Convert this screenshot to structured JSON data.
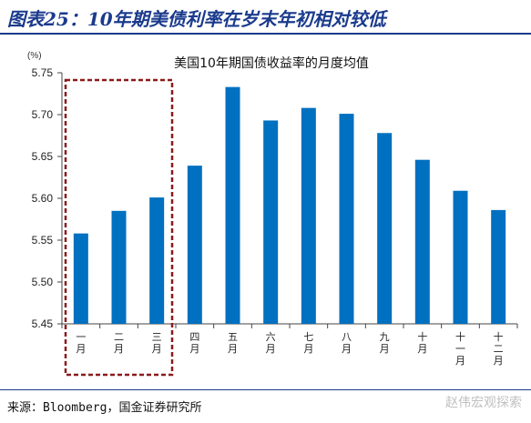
{
  "header": {
    "title": "图表25：10年期美债利率在岁末年初相对较低"
  },
  "footer": {
    "source": "来源：Bloomberg，国金证券研究所",
    "watermark": "赵伟宏观探索"
  },
  "chart_data": {
    "type": "bar",
    "title": "美国10年期国债收益率的月度均值",
    "ylabel": "(%)",
    "xlabel": "",
    "categories": [
      "一月",
      "二月",
      "三月",
      "四月",
      "五月",
      "六月",
      "七月",
      "八月",
      "九月",
      "十月",
      "十一月",
      "十二月"
    ],
    "values": [
      5.558,
      5.585,
      5.601,
      5.639,
      5.733,
      5.693,
      5.708,
      5.701,
      5.678,
      5.646,
      5.609,
      5.586
    ],
    "ylim": [
      5.45,
      5.75
    ],
    "yticks": [
      "5.45",
      "5.50",
      "5.55",
      "5.60",
      "5.65",
      "5.70",
      "5.75"
    ],
    "highlight": {
      "categories": [
        "一月",
        "二月",
        "三月"
      ],
      "color": "#8b1a1a"
    },
    "colors": {
      "bar": "#0070c0",
      "axis": "#444444"
    },
    "grid": false,
    "legend": "none"
  }
}
